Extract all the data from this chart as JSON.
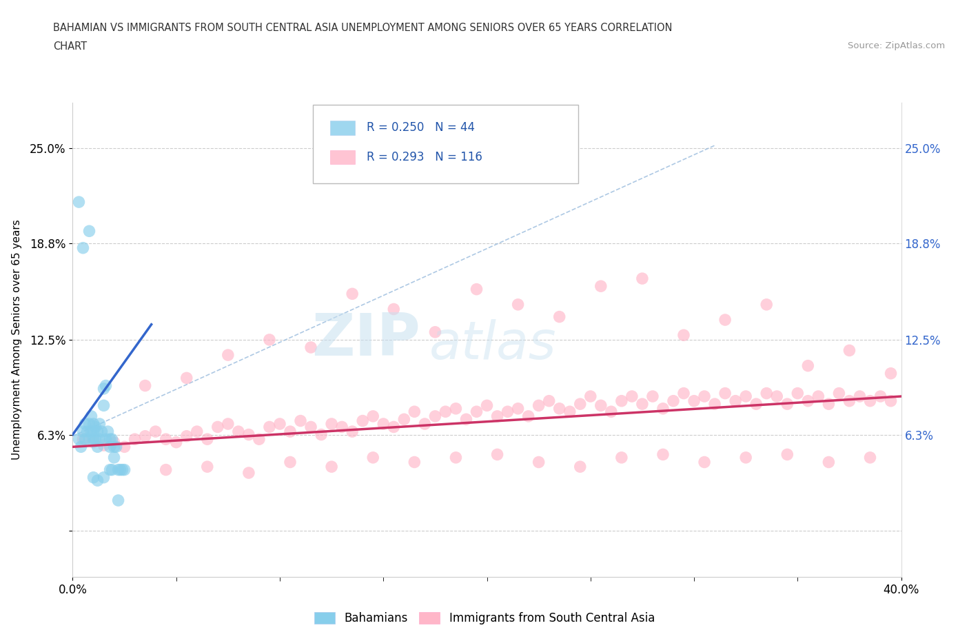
{
  "title_line1": "BAHAMIAN VS IMMIGRANTS FROM SOUTH CENTRAL ASIA UNEMPLOYMENT AMONG SENIORS OVER 65 YEARS CORRELATION",
  "title_line2": "CHART",
  "source": "Source: ZipAtlas.com",
  "ylabel": "Unemployment Among Seniors over 65 years",
  "xmin": 0.0,
  "xmax": 0.4,
  "ymin": -0.03,
  "ymax": 0.28,
  "ytick_vals": [
    0.0,
    0.063,
    0.125,
    0.188,
    0.25
  ],
  "ytick_labels_left": [
    "",
    "6.3%",
    "12.5%",
    "18.8%",
    "25.0%"
  ],
  "ytick_labels_right": [
    "",
    "6.3%",
    "12.5%",
    "18.8%",
    "25.0%"
  ],
  "xtick_positions": [
    0.0,
    0.4
  ],
  "xtick_labels": [
    "0.0%",
    "40.0%"
  ],
  "bahamian_color": "#87CEEB",
  "immigrant_color": "#FFB6C8",
  "trendline_blue": "#3366CC",
  "trendline_pink": "#CC3366",
  "diag_color": "#AACCEE",
  "watermark_zip": "ZIP",
  "watermark_atlas": "atlas",
  "legend_r1": "R = 0.250",
  "legend_n1": "N = 44",
  "legend_r2": "R = 0.293",
  "legend_n2": "N = 116",
  "blue_trendline_x": [
    0.0,
    0.038
  ],
  "blue_trendline_y": [
    0.063,
    0.135
  ],
  "pink_trendline_x": [
    0.0,
    0.4
  ],
  "pink_trendline_y": [
    0.055,
    0.088
  ],
  "diag_line_x": [
    0.3,
    0.0
  ],
  "diag_line_y": [
    0.248,
    0.063
  ],
  "bahamian_x": [
    0.003,
    0.003,
    0.004,
    0.005,
    0.006,
    0.006,
    0.007,
    0.008,
    0.008,
    0.009,
    0.009,
    0.01,
    0.01,
    0.01,
    0.011,
    0.011,
    0.012,
    0.012,
    0.013,
    0.013,
    0.014,
    0.015,
    0.015,
    0.016,
    0.016,
    0.017,
    0.018,
    0.018,
    0.019,
    0.019,
    0.02,
    0.02,
    0.021,
    0.022,
    0.023,
    0.024,
    0.025,
    0.005,
    0.008,
    0.01,
    0.012,
    0.015,
    0.018,
    0.022
  ],
  "bahamian_y": [
    0.215,
    0.06,
    0.055,
    0.065,
    0.07,
    0.06,
    0.065,
    0.07,
    0.06,
    0.065,
    0.075,
    0.06,
    0.065,
    0.07,
    0.068,
    0.06,
    0.055,
    0.065,
    0.07,
    0.06,
    0.065,
    0.082,
    0.093,
    0.095,
    0.06,
    0.065,
    0.06,
    0.055,
    0.04,
    0.06,
    0.048,
    0.055,
    0.055,
    0.04,
    0.04,
    0.04,
    0.04,
    0.185,
    0.196,
    0.035,
    0.033,
    0.035,
    0.04,
    0.02
  ],
  "immigrant_x": [
    0.005,
    0.01,
    0.015,
    0.02,
    0.025,
    0.03,
    0.035,
    0.04,
    0.045,
    0.05,
    0.055,
    0.06,
    0.065,
    0.07,
    0.075,
    0.08,
    0.085,
    0.09,
    0.095,
    0.1,
    0.105,
    0.11,
    0.115,
    0.12,
    0.125,
    0.13,
    0.135,
    0.14,
    0.145,
    0.15,
    0.155,
    0.16,
    0.165,
    0.17,
    0.175,
    0.18,
    0.185,
    0.19,
    0.195,
    0.2,
    0.205,
    0.21,
    0.215,
    0.22,
    0.225,
    0.23,
    0.235,
    0.24,
    0.245,
    0.25,
    0.255,
    0.26,
    0.265,
    0.27,
    0.275,
    0.28,
    0.285,
    0.29,
    0.295,
    0.3,
    0.305,
    0.31,
    0.315,
    0.32,
    0.325,
    0.33,
    0.335,
    0.34,
    0.345,
    0.35,
    0.355,
    0.36,
    0.365,
    0.37,
    0.375,
    0.38,
    0.385,
    0.39,
    0.395,
    0.035,
    0.055,
    0.075,
    0.095,
    0.115,
    0.135,
    0.155,
    0.175,
    0.195,
    0.215,
    0.235,
    0.255,
    0.275,
    0.295,
    0.315,
    0.335,
    0.355,
    0.375,
    0.395,
    0.045,
    0.065,
    0.085,
    0.105,
    0.125,
    0.145,
    0.165,
    0.185,
    0.205,
    0.225,
    0.245,
    0.265,
    0.285,
    0.305,
    0.325,
    0.345,
    0.365,
    0.385
  ],
  "immigrant_y": [
    0.06,
    0.058,
    0.056,
    0.058,
    0.055,
    0.06,
    0.062,
    0.065,
    0.06,
    0.058,
    0.062,
    0.065,
    0.06,
    0.068,
    0.07,
    0.065,
    0.063,
    0.06,
    0.068,
    0.07,
    0.065,
    0.072,
    0.068,
    0.063,
    0.07,
    0.068,
    0.065,
    0.072,
    0.075,
    0.07,
    0.068,
    0.073,
    0.078,
    0.07,
    0.075,
    0.078,
    0.08,
    0.073,
    0.078,
    0.082,
    0.075,
    0.078,
    0.08,
    0.075,
    0.082,
    0.085,
    0.08,
    0.078,
    0.083,
    0.088,
    0.082,
    0.078,
    0.085,
    0.088,
    0.083,
    0.088,
    0.08,
    0.085,
    0.09,
    0.085,
    0.088,
    0.083,
    0.09,
    0.085,
    0.088,
    0.083,
    0.09,
    0.088,
    0.083,
    0.09,
    0.085,
    0.088,
    0.083,
    0.09,
    0.085,
    0.088,
    0.085,
    0.088,
    0.085,
    0.095,
    0.1,
    0.115,
    0.125,
    0.12,
    0.155,
    0.145,
    0.13,
    0.158,
    0.148,
    0.14,
    0.16,
    0.165,
    0.128,
    0.138,
    0.148,
    0.108,
    0.118,
    0.103,
    0.04,
    0.042,
    0.038,
    0.045,
    0.042,
    0.048,
    0.045,
    0.048,
    0.05,
    0.045,
    0.042,
    0.048,
    0.05,
    0.045,
    0.048,
    0.05,
    0.045,
    0.048
  ]
}
